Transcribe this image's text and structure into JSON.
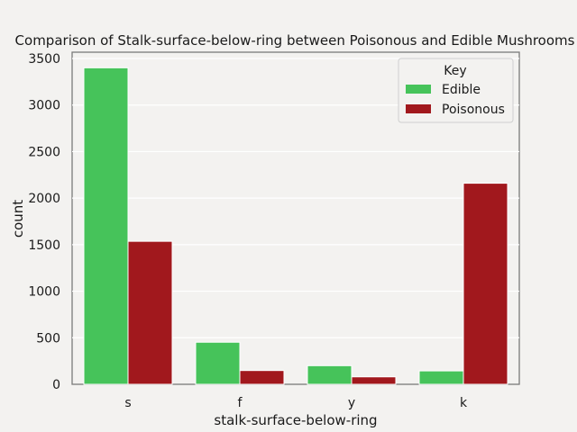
{
  "chart_data": {
    "type": "bar",
    "title": "Comparison of Stalk-surface-below-ring between Poisonous and Edible Mushrooms",
    "xlabel": "stalk-surface-below-ring",
    "ylabel": "count",
    "categories": [
      "s",
      "f",
      "y",
      "k"
    ],
    "series": [
      {
        "name": "Edible",
        "color": "#46c35a",
        "values": [
          3400,
          452,
          200,
          144
        ]
      },
      {
        "name": "Poisonous",
        "color": "#a1181d",
        "values": [
          1536,
          148,
          80,
          2160
        ]
      }
    ],
    "ylim": [
      0,
      3500
    ],
    "yticks": [
      0,
      500,
      1000,
      1500,
      2000,
      2500,
      3000,
      3500
    ],
    "grid": true,
    "legend": {
      "title": "Key",
      "position": "top-right"
    }
  }
}
